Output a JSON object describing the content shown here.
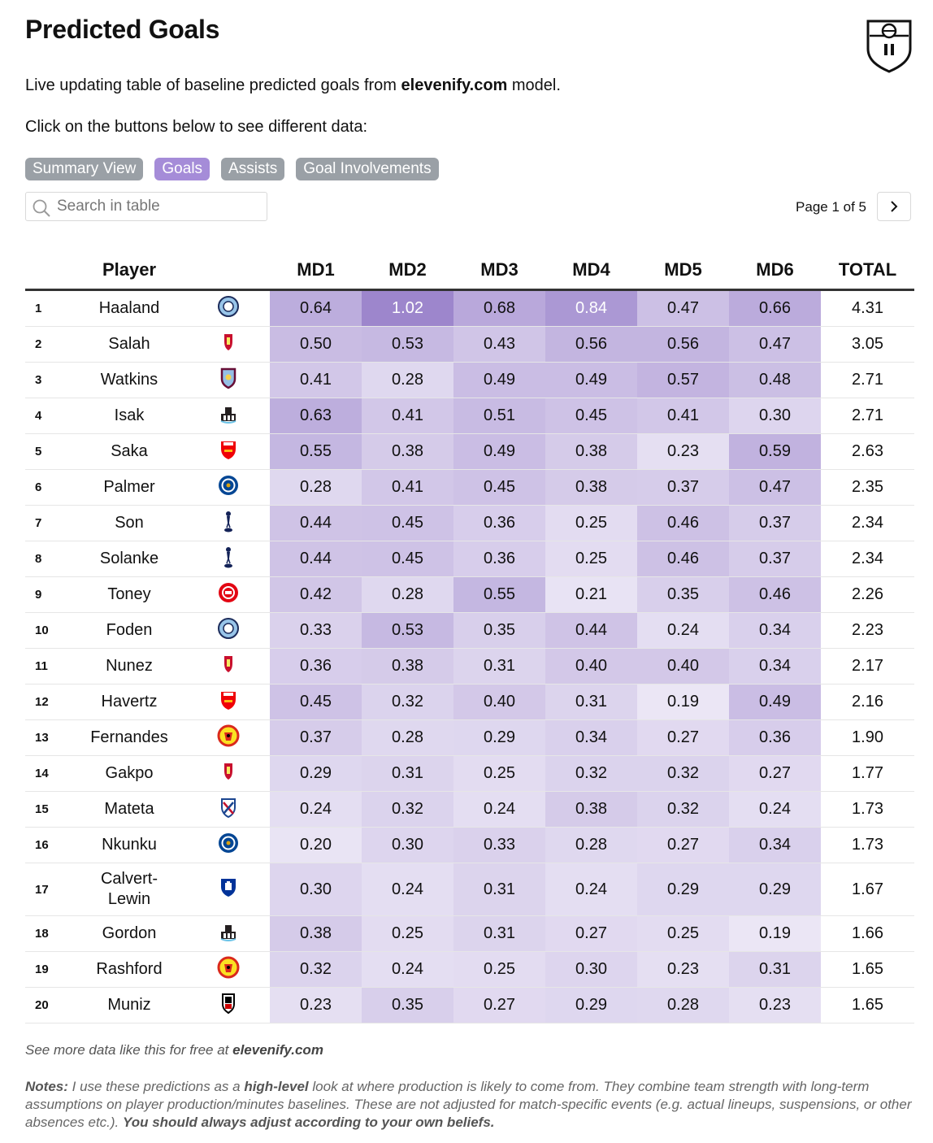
{
  "title": "Predicted Goals",
  "subtitle": {
    "prefix": "Live updating table of baseline predicted goals from ",
    "brand": "elevenify.com",
    "suffix": " model."
  },
  "instruction": "Click on the buttons below to see different data:",
  "buttons": [
    {
      "label": "Summary View",
      "active": false
    },
    {
      "label": "Goals",
      "active": true
    },
    {
      "label": "Assists",
      "active": false
    },
    {
      "label": "Goal Involvements",
      "active": false
    }
  ],
  "search": {
    "placeholder": "Search in table"
  },
  "pagination": {
    "text": "Page 1 of 5"
  },
  "colors": {
    "accent": "#a58cd8",
    "button_gray": "#9aa0a6",
    "heat_base": "#ede8f6",
    "heat_max": "#9f88cf"
  },
  "table": {
    "columns": [
      "",
      "Player",
      "",
      "MD1",
      "MD2",
      "MD3",
      "MD4",
      "MD5",
      "MD6",
      "TOTAL"
    ],
    "rows": [
      {
        "rank": "1",
        "player": "Haaland",
        "team": "mancity",
        "md": [
          "0.64",
          "1.02",
          "0.68",
          "0.84",
          "0.47",
          "0.66"
        ],
        "total": "4.31"
      },
      {
        "rank": "2",
        "player": "Salah",
        "team": "liverpool",
        "md": [
          "0.50",
          "0.53",
          "0.43",
          "0.56",
          "0.56",
          "0.47"
        ],
        "total": "3.05"
      },
      {
        "rank": "3",
        "player": "Watkins",
        "team": "astonvilla",
        "md": [
          "0.41",
          "0.28",
          "0.49",
          "0.49",
          "0.57",
          "0.48"
        ],
        "total": "2.71"
      },
      {
        "rank": "4",
        "player": "Isak",
        "team": "newcastle",
        "md": [
          "0.63",
          "0.41",
          "0.51",
          "0.45",
          "0.41",
          "0.30"
        ],
        "total": "2.71"
      },
      {
        "rank": "5",
        "player": "Saka",
        "team": "arsenal",
        "md": [
          "0.55",
          "0.38",
          "0.49",
          "0.38",
          "0.23",
          "0.59"
        ],
        "total": "2.63"
      },
      {
        "rank": "6",
        "player": "Palmer",
        "team": "chelsea",
        "md": [
          "0.28",
          "0.41",
          "0.45",
          "0.38",
          "0.37",
          "0.47"
        ],
        "total": "2.35"
      },
      {
        "rank": "7",
        "player": "Son",
        "team": "tottenham",
        "md": [
          "0.44",
          "0.45",
          "0.36",
          "0.25",
          "0.46",
          "0.37"
        ],
        "total": "2.34"
      },
      {
        "rank": "8",
        "player": "Solanke",
        "team": "tottenham",
        "md": [
          "0.44",
          "0.45",
          "0.36",
          "0.25",
          "0.46",
          "0.37"
        ],
        "total": "2.34"
      },
      {
        "rank": "9",
        "player": "Toney",
        "team": "brentford",
        "md": [
          "0.42",
          "0.28",
          "0.55",
          "0.21",
          "0.35",
          "0.46"
        ],
        "total": "2.26"
      },
      {
        "rank": "10",
        "player": "Foden",
        "team": "mancity",
        "md": [
          "0.33",
          "0.53",
          "0.35",
          "0.44",
          "0.24",
          "0.34"
        ],
        "total": "2.23"
      },
      {
        "rank": "11",
        "player": "Nunez",
        "team": "liverpool",
        "md": [
          "0.36",
          "0.38",
          "0.31",
          "0.40",
          "0.40",
          "0.34"
        ],
        "total": "2.17"
      },
      {
        "rank": "12",
        "player": "Havertz",
        "team": "arsenal",
        "md": [
          "0.45",
          "0.32",
          "0.40",
          "0.31",
          "0.19",
          "0.49"
        ],
        "total": "2.16"
      },
      {
        "rank": "13",
        "player": "Fernandes",
        "team": "manutd",
        "md": [
          "0.37",
          "0.28",
          "0.29",
          "0.34",
          "0.27",
          "0.36"
        ],
        "total": "1.90"
      },
      {
        "rank": "14",
        "player": "Gakpo",
        "team": "liverpool",
        "md": [
          "0.29",
          "0.31",
          "0.25",
          "0.32",
          "0.32",
          "0.27"
        ],
        "total": "1.77"
      },
      {
        "rank": "15",
        "player": "Mateta",
        "team": "crystalpalace",
        "md": [
          "0.24",
          "0.32",
          "0.24",
          "0.38",
          "0.32",
          "0.24"
        ],
        "total": "1.73"
      },
      {
        "rank": "16",
        "player": "Nkunku",
        "team": "chelsea",
        "md": [
          "0.20",
          "0.30",
          "0.33",
          "0.28",
          "0.27",
          "0.34"
        ],
        "total": "1.73"
      },
      {
        "rank": "17",
        "player": "Calvert-Lewin",
        "team": "everton",
        "md": [
          "0.30",
          "0.24",
          "0.31",
          "0.24",
          "0.29",
          "0.29"
        ],
        "total": "1.67"
      },
      {
        "rank": "18",
        "player": "Gordon",
        "team": "newcastle",
        "md": [
          "0.38",
          "0.25",
          "0.31",
          "0.27",
          "0.25",
          "0.19"
        ],
        "total": "1.66"
      },
      {
        "rank": "19",
        "player": "Rashford",
        "team": "manutd",
        "md": [
          "0.32",
          "0.24",
          "0.25",
          "0.30",
          "0.23",
          "0.31"
        ],
        "total": "1.65"
      },
      {
        "rank": "20",
        "player": "Muniz",
        "team": "fulham",
        "md": [
          "0.23",
          "0.35",
          "0.27",
          "0.29",
          "0.28",
          "0.23"
        ],
        "total": "1.65"
      }
    ]
  },
  "footer": {
    "prefix": "See more data like this for free at ",
    "brand": "elevenify.com"
  },
  "notes": {
    "label": "Notes:",
    "part1": " I use these predictions as a ",
    "highlight": "high-level",
    "part2": " look at where production is likely to come from. They combine team strength with long-term assumptions on player production/minutes baselines. These are not adjusted for match-specific events (e.g. actual lineups, suspensions, or other absences etc.). ",
    "emphasis": "You should always adjust according to your own beliefs."
  }
}
